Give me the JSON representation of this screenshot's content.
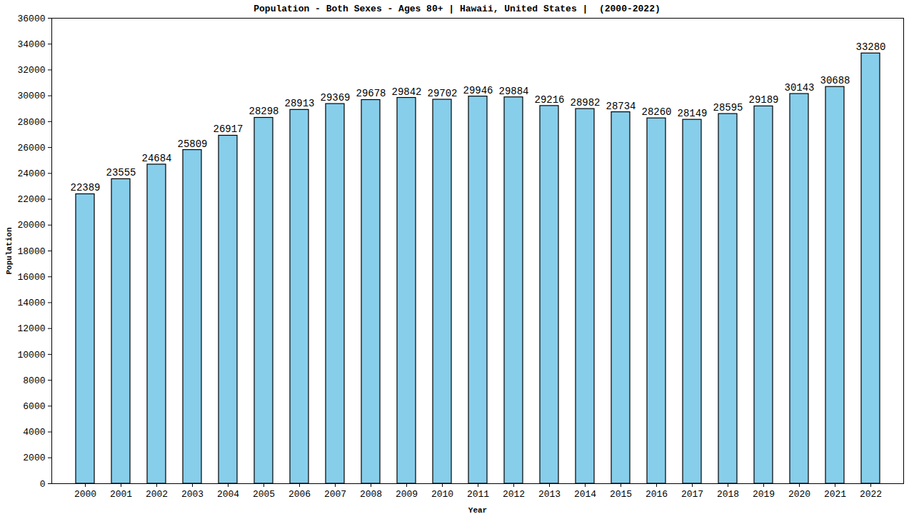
{
  "chart_data": {
    "type": "bar",
    "title": "Population - Both Sexes - Ages 80+ | Hawaii, United States |  (2000-2022)",
    "x_label": "Year",
    "y_label": "Population",
    "categories": [
      "2000",
      "2001",
      "2002",
      "2003",
      "2004",
      "2005",
      "2006",
      "2007",
      "2008",
      "2009",
      "2010",
      "2011",
      "2012",
      "2013",
      "2014",
      "2015",
      "2016",
      "2017",
      "2018",
      "2019",
      "2020",
      "2021",
      "2022"
    ],
    "values": [
      22389,
      23555,
      24684,
      25809,
      26917,
      28298,
      28913,
      29369,
      29678,
      29842,
      29702,
      29946,
      29884,
      29216,
      28982,
      28734,
      28260,
      28149,
      28595,
      29189,
      30143,
      30688,
      33280
    ],
    "color": "#87ceeb",
    "ylim": [
      0,
      36000
    ],
    "yticks": [
      0,
      2000,
      4000,
      6000,
      8000,
      10000,
      12000,
      14000,
      16000,
      18000,
      20000,
      22000,
      24000,
      26000,
      28000,
      30000,
      32000,
      34000,
      36000
    ],
    "grid": false,
    "data_labels": true
  }
}
